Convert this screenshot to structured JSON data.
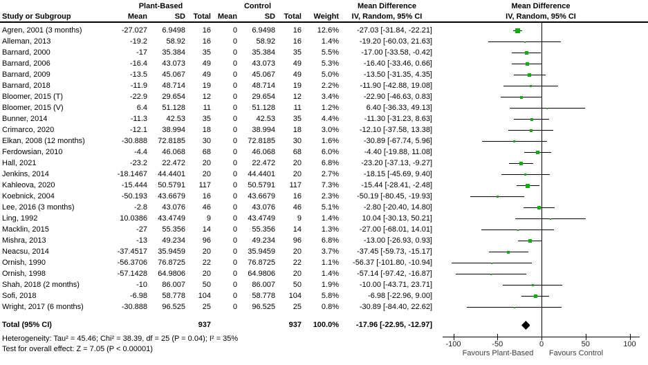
{
  "header": {
    "group_plant": "Plant-Based",
    "group_control": "Control",
    "study": "Study or Subgroup",
    "mean": "Mean",
    "sd": "SD",
    "total": "Total",
    "weight": "Weight",
    "md_title": "Mean Difference",
    "md_subtitle": "IV, Random, 95% CI"
  },
  "totals": {
    "label": "Total (95% CI)",
    "plant_total": "937",
    "control_total": "937",
    "weight": "100.0%",
    "md_text": "-17.96 [-22.95, -12.97]",
    "est": -17.96,
    "lo": -22.95,
    "hi": -12.97
  },
  "footnotes": {
    "heterogeneity": "Heterogeneity: Tau² = 45.46; Chi² = 38.39, df = 25 (P = 0.04); I² = 35%",
    "overall_effect": "Test for overall effect: Z = 7.05 (P < 0.00001)"
  },
  "axis": {
    "ticks": [
      -100,
      -50,
      0,
      50,
      100
    ],
    "favours_left": "Favours Plant-Based",
    "favours_right": "Favours Control"
  },
  "colors": {
    "square_green": "#00b400",
    "diamond_black": "#000000",
    "line_black": "#000000"
  },
  "chart_data": {
    "type": "scatter",
    "subtype": "forest-plot-meta-analysis",
    "effect_measure": "Mean Difference (IV, Random, 95% CI)",
    "x_ticks": [
      -100,
      -50,
      0,
      50,
      100
    ],
    "x_range": [
      -112,
      113
    ],
    "legend": "none",
    "studies": [
      {
        "label": "Agren, 2001 (3 months)",
        "p_mean": "-27.027",
        "p_sd": "6.9498",
        "p_total": "16",
        "c_mean": "0",
        "c_sd": "6.9498",
        "c_total": "16",
        "weight": "12.6%",
        "weight_val": 12.6,
        "md_text": "-27.03 [-31.84, -22.21]",
        "est": -27.03,
        "lo": -31.84,
        "hi": -22.21
      },
      {
        "label": "Alleman, 2013",
        "p_mean": "-19.2",
        "p_sd": "58.92",
        "p_total": "16",
        "c_mean": "0",
        "c_sd": "58.92",
        "c_total": "16",
        "weight": "1.4%",
        "weight_val": 1.4,
        "md_text": "-19.20 [-60.03, 21.63]",
        "est": -19.2,
        "lo": -60.03,
        "hi": 21.63
      },
      {
        "label": "Barnard, 2000",
        "p_mean": "-17",
        "p_sd": "35.384",
        "p_total": "35",
        "c_mean": "0",
        "c_sd": "35.384",
        "c_total": "35",
        "weight": "5.5%",
        "weight_val": 5.5,
        "md_text": "-17.00 [-33.58, -0.42]",
        "est": -17.0,
        "lo": -33.58,
        "hi": -0.42
      },
      {
        "label": "Barnard, 2006",
        "p_mean": "-16.4",
        "p_sd": "43.073",
        "p_total": "49",
        "c_mean": "0",
        "c_sd": "43.073",
        "c_total": "49",
        "weight": "5.3%",
        "weight_val": 5.3,
        "md_text": "-16.40 [-33.46, 0.66]",
        "est": -16.4,
        "lo": -33.46,
        "hi": 0.66
      },
      {
        "label": "Barnard, 2009",
        "p_mean": "-13.5",
        "p_sd": "45.067",
        "p_total": "49",
        "c_mean": "0",
        "c_sd": "45.067",
        "c_total": "49",
        "weight": "5.0%",
        "weight_val": 5.0,
        "md_text": "-13.50 [-31.35, 4.35]",
        "est": -13.5,
        "lo": -31.35,
        "hi": 4.35
      },
      {
        "label": "Barnard, 2018",
        "p_mean": "-11.9",
        "p_sd": "48.714",
        "p_total": "19",
        "c_mean": "0",
        "c_sd": "48.714",
        "c_total": "19",
        "weight": "2.2%",
        "weight_val": 2.2,
        "md_text": "-11.90 [-42.88, 19.08]",
        "est": -11.9,
        "lo": -42.88,
        "hi": 19.08
      },
      {
        "label": "Bloomer, 2015 (T)",
        "p_mean": "-22.9",
        "p_sd": "29.654",
        "p_total": "12",
        "c_mean": "0",
        "c_sd": "29.654",
        "c_total": "12",
        "weight": "3.4%",
        "weight_val": 3.4,
        "md_text": "-22.90 [-46.63, 0.83]",
        "est": -22.9,
        "lo": -46.63,
        "hi": 0.83
      },
      {
        "label": "Bloomer, 2015 (V)",
        "p_mean": "6.4",
        "p_sd": "51.128",
        "p_total": "11",
        "c_mean": "0",
        "c_sd": "51.128",
        "c_total": "11",
        "weight": "1.2%",
        "weight_val": 1.2,
        "md_text": "6.40 [-36.33, 49.13]",
        "est": 6.4,
        "lo": -36.33,
        "hi": 49.13
      },
      {
        "label": "Bunner, 2014",
        "p_mean": "-11.3",
        "p_sd": "42.53",
        "p_total": "35",
        "c_mean": "0",
        "c_sd": "42.53",
        "c_total": "35",
        "weight": "4.4%",
        "weight_val": 4.4,
        "md_text": "-11.30 [-31.23, 8.63]",
        "est": -11.3,
        "lo": -31.23,
        "hi": 8.63
      },
      {
        "label": "Crimarco, 2020",
        "p_mean": "-12.1",
        "p_sd": "38.994",
        "p_total": "18",
        "c_mean": "0",
        "c_sd": "38.994",
        "c_total": "18",
        "weight": "3.0%",
        "weight_val": 3.0,
        "md_text": "-12.10 [-37.58, 13.38]",
        "est": -12.1,
        "lo": -37.58,
        "hi": 13.38
      },
      {
        "label": "Elkan, 2008 (12 months)",
        "p_mean": "-30.888",
        "p_sd": "72.8185",
        "p_total": "30",
        "c_mean": "0",
        "c_sd": "72.8185",
        "c_total": "30",
        "weight": "1.6%",
        "weight_val": 1.6,
        "md_text": "-30.89 [-67.74, 5.96]",
        "est": -30.89,
        "lo": -67.74,
        "hi": 5.96
      },
      {
        "label": "Ferdowsian, 2010",
        "p_mean": "-4.4",
        "p_sd": "46.068",
        "p_total": "68",
        "c_mean": "0",
        "c_sd": "46.068",
        "c_total": "68",
        "weight": "6.0%",
        "weight_val": 6.0,
        "md_text": "-4.40 [-19.88, 11.08]",
        "est": -4.4,
        "lo": -19.88,
        "hi": 11.08
      },
      {
        "label": "Hall, 2021",
        "p_mean": "-23.2",
        "p_sd": "22.472",
        "p_total": "20",
        "c_mean": "0",
        "c_sd": "22.472",
        "c_total": "20",
        "weight": "6.8%",
        "weight_val": 6.8,
        "md_text": "-23.20 [-37.13, -9.27]",
        "est": -23.2,
        "lo": -37.13,
        "hi": -9.27
      },
      {
        "label": "Jenkins, 2014",
        "p_mean": "-18.1467",
        "p_sd": "44.4401",
        "p_total": "20",
        "c_mean": "0",
        "c_sd": "44.4401",
        "c_total": "20",
        "weight": "2.7%",
        "weight_val": 2.7,
        "md_text": "-18.15 [-45.69, 9.40]",
        "est": -18.15,
        "lo": -45.69,
        "hi": 9.4
      },
      {
        "label": "Kahleova, 2020",
        "p_mean": "-15.444",
        "p_sd": "50.5791",
        "p_total": "117",
        "c_mean": "0",
        "c_sd": "50.5791",
        "c_total": "117",
        "weight": "7.3%",
        "weight_val": 7.3,
        "md_text": "-15.44 [-28.41, -2.48]",
        "est": -15.44,
        "lo": -28.41,
        "hi": -2.48
      },
      {
        "label": "Koebnick, 2004",
        "p_mean": "-50.193",
        "p_sd": "43.6679",
        "p_total": "16",
        "c_mean": "0",
        "c_sd": "43.6679",
        "c_total": "16",
        "weight": "2.3%",
        "weight_val": 2.3,
        "md_text": "-50.19 [-80.45, -19.93]",
        "est": -50.19,
        "lo": -80.45,
        "hi": -19.93
      },
      {
        "label": "Lee, 2016 (3 months)",
        "p_mean": "-2.8",
        "p_sd": "43.076",
        "p_total": "46",
        "c_mean": "0",
        "c_sd": "43.076",
        "c_total": "46",
        "weight": "5.1%",
        "weight_val": 5.1,
        "md_text": "-2.80 [-20.40, 14.80]",
        "est": -2.8,
        "lo": -20.4,
        "hi": 14.8
      },
      {
        "label": "Ling, 1992",
        "p_mean": "10.0386",
        "p_sd": "43.4749",
        "p_total": "9",
        "c_mean": "0",
        "c_sd": "43.4749",
        "c_total": "9",
        "weight": "1.4%",
        "weight_val": 1.4,
        "md_text": "10.04 [-30.13, 50.21]",
        "est": 10.04,
        "lo": -30.13,
        "hi": 50.21
      },
      {
        "label": "Macklin, 2015",
        "p_mean": "-27",
        "p_sd": "55.356",
        "p_total": "14",
        "c_mean": "0",
        "c_sd": "55.356",
        "c_total": "14",
        "weight": "1.3%",
        "weight_val": 1.3,
        "md_text": "-27.00 [-68.01, 14.01]",
        "est": -27.0,
        "lo": -68.01,
        "hi": 14.01
      },
      {
        "label": "Mishra, 2013",
        "p_mean": "-13",
        "p_sd": "49.234",
        "p_total": "96",
        "c_mean": "0",
        "c_sd": "49.234",
        "c_total": "96",
        "weight": "6.8%",
        "weight_val": 6.8,
        "md_text": "-13.00 [-26.93, 0.93]",
        "est": -13.0,
        "lo": -26.93,
        "hi": 0.93
      },
      {
        "label": "Neacsu, 2014",
        "p_mean": "-37.4517",
        "p_sd": "35.9459",
        "p_total": "20",
        "c_mean": "0",
        "c_sd": "35.9459",
        "c_total": "20",
        "weight": "3.7%",
        "weight_val": 3.7,
        "md_text": "-37.45 [-59.73, -15.17]",
        "est": -37.45,
        "lo": -59.73,
        "hi": -15.17
      },
      {
        "label": "Ornish, 1990",
        "p_mean": "-56.3706",
        "p_sd": "76.8725",
        "p_total": "22",
        "c_mean": "0",
        "c_sd": "76.8725",
        "c_total": "22",
        "weight": "1.1%",
        "weight_val": 1.1,
        "md_text": "-56.37 [-101.80, -10.94]",
        "est": -56.37,
        "lo": -101.8,
        "hi": -10.94
      },
      {
        "label": "Ornish, 1998",
        "p_mean": "-57.1428",
        "p_sd": "64.9806",
        "p_total": "20",
        "c_mean": "0",
        "c_sd": "64.9806",
        "c_total": "20",
        "weight": "1.4%",
        "weight_val": 1.4,
        "md_text": "-57.14 [-97.42, -16.87]",
        "est": -57.14,
        "lo": -97.42,
        "hi": -16.87
      },
      {
        "label": "Shah, 2018 (2 months)",
        "p_mean": "-10",
        "p_sd": "86.007",
        "p_total": "50",
        "c_mean": "0",
        "c_sd": "86.007",
        "c_total": "50",
        "weight": "1.9%",
        "weight_val": 1.9,
        "md_text": "-10.00 [-43.71, 23.71]",
        "est": -10.0,
        "lo": -43.71,
        "hi": 23.71
      },
      {
        "label": "Sofi, 2018",
        "p_mean": "-6.98",
        "p_sd": "58.778",
        "p_total": "104",
        "c_mean": "0",
        "c_sd": "58.778",
        "c_total": "104",
        "weight": "5.8%",
        "weight_val": 5.8,
        "md_text": "-6.98 [-22.96, 9.00]",
        "est": -6.98,
        "lo": -22.96,
        "hi": 9.0
      },
      {
        "label": "Wright, 2017 (6 months)",
        "p_mean": "-30.888",
        "p_sd": "96.525",
        "p_total": "25",
        "c_mean": "0",
        "c_sd": "96.525",
        "c_total": "25",
        "weight": "0.8%",
        "weight_val": 0.8,
        "md_text": "-30.89 [-84.40, 22.62]",
        "est": -30.89,
        "lo": -84.4,
        "hi": 22.62
      }
    ],
    "total": {
      "label": "Total (95% CI)",
      "est": -17.96,
      "lo": -22.95,
      "hi": -12.97,
      "weight_pct": 100.0,
      "n_plant": 937,
      "n_control": 937
    }
  }
}
